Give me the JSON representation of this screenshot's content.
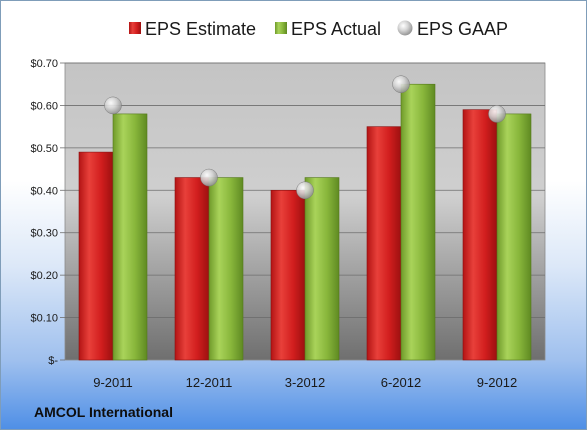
{
  "chart_data": {
    "type": "bar",
    "categories": [
      "9-2011",
      "12-2011",
      "3-2012",
      "6-2012",
      "9-2012"
    ],
    "series": [
      {
        "name": "EPS Estimate",
        "kind": "bar",
        "color": "#d42020",
        "values": [
          0.49,
          0.43,
          0.4,
          0.55,
          0.59
        ]
      },
      {
        "name": "EPS Actual",
        "kind": "bar",
        "color": "#8cb83c",
        "values": [
          0.58,
          0.43,
          0.43,
          0.65,
          0.58
        ]
      },
      {
        "name": "EPS GAAP",
        "kind": "marker",
        "color": "#c8c8c8",
        "values": [
          0.6,
          0.43,
          0.4,
          0.65,
          0.58
        ]
      }
    ],
    "y_ticks": [
      0,
      0.1,
      0.2,
      0.3,
      0.4,
      0.5,
      0.6,
      0.7
    ],
    "y_tick_labels": [
      "$-",
      "$0.10",
      "$0.20",
      "$0.30",
      "$0.40",
      "$0.50",
      "$0.60",
      "$0.70"
    ],
    "ylim": [
      0,
      0.7
    ],
    "grid": true,
    "legend": "top-center"
  },
  "footer": {
    "company": "AMCOL International"
  }
}
